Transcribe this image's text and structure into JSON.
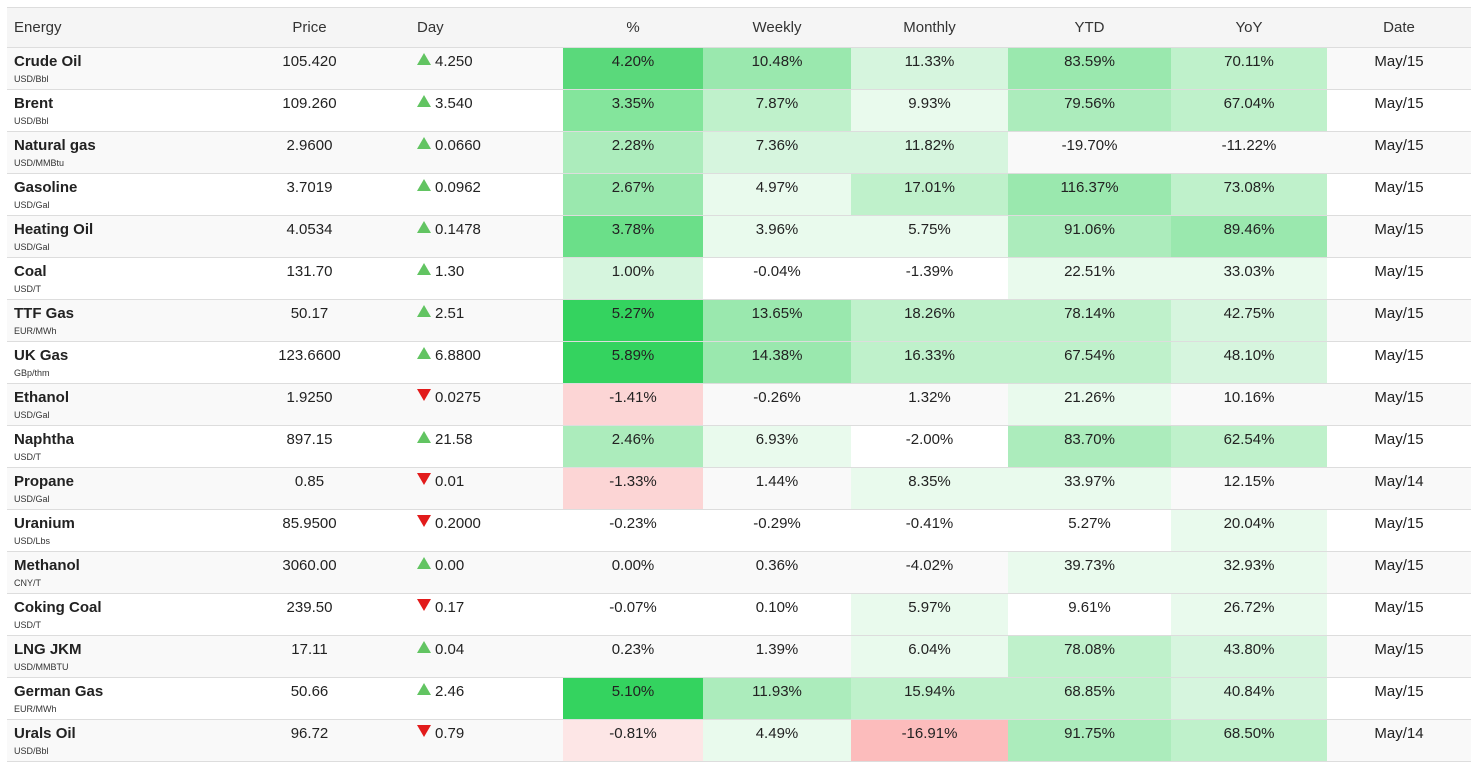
{
  "headers": {
    "name": "Energy",
    "price": "Price",
    "day": "Day",
    "pct": "%",
    "weekly": "Weekly",
    "monthly": "Monthly",
    "ytd": "YTD",
    "yoy": "YoY",
    "date": "Date"
  },
  "rows": [
    {
      "name": "Crude Oil",
      "unit": "USD/Bbl",
      "price": "105.420",
      "day_dir": "up",
      "day": "4.250",
      "pct": {
        "text": "4.20%",
        "bg": "#5ad97b"
      },
      "weekly": {
        "text": "10.48%",
        "bg": "#9ae8ae"
      },
      "monthly": {
        "text": "11.33%",
        "bg": "#d6f5de"
      },
      "ytd": {
        "text": "83.59%",
        "bg": "#9ae8ae"
      },
      "yoy": {
        "text": "70.11%",
        "bg": "#bff1cb"
      },
      "date": "May/15"
    },
    {
      "name": "Brent",
      "unit": "USD/Bbl",
      "price": "109.260",
      "day_dir": "up",
      "day": "3.540",
      "pct": {
        "text": "3.35%",
        "bg": "#84e59c"
      },
      "weekly": {
        "text": "7.87%",
        "bg": "#bff1cb"
      },
      "monthly": {
        "text": "9.93%",
        "bg": "#e9faed"
      },
      "ytd": {
        "text": "79.56%",
        "bg": "#acecbc"
      },
      "yoy": {
        "text": "67.04%",
        "bg": "#bff1cb"
      },
      "date": "May/15"
    },
    {
      "name": "Natural gas",
      "unit": "USD/MMBtu",
      "price": "2.9600",
      "day_dir": "up",
      "day": "0.0660",
      "pct": {
        "text": "2.28%",
        "bg": "#acecbc"
      },
      "weekly": {
        "text": "7.36%",
        "bg": "#d6f5de"
      },
      "monthly": {
        "text": "11.82%",
        "bg": "#d6f5de"
      },
      "ytd": {
        "text": "-19.70%",
        "bg": ""
      },
      "yoy": {
        "text": "-11.22%",
        "bg": ""
      },
      "date": "May/15"
    },
    {
      "name": "Gasoline",
      "unit": "USD/Gal",
      "price": "3.7019",
      "day_dir": "up",
      "day": "0.0962",
      "pct": {
        "text": "2.67%",
        "bg": "#9ae8ae"
      },
      "weekly": {
        "text": "4.97%",
        "bg": "#e9faed"
      },
      "monthly": {
        "text": "17.01%",
        "bg": "#bff1cb"
      },
      "ytd": {
        "text": "116.37%",
        "bg": "#9ae8ae"
      },
      "yoy": {
        "text": "73.08%",
        "bg": "#bff1cb"
      },
      "date": "May/15"
    },
    {
      "name": "Heating Oil",
      "unit": "USD/Gal",
      "price": "4.0534",
      "day_dir": "up",
      "day": "0.1478",
      "pct": {
        "text": "3.78%",
        "bg": "#6bdf89"
      },
      "weekly": {
        "text": "3.96%",
        "bg": "#e9faed"
      },
      "monthly": {
        "text": "5.75%",
        "bg": "#e9faed"
      },
      "ytd": {
        "text": "91.06%",
        "bg": "#acecbc"
      },
      "yoy": {
        "text": "89.46%",
        "bg": "#9ae8ae"
      },
      "date": "May/15"
    },
    {
      "name": "Coal",
      "unit": "USD/T",
      "price": "131.70",
      "day_dir": "up",
      "day": "1.30",
      "pct": {
        "text": "1.00%",
        "bg": "#d6f5de"
      },
      "weekly": {
        "text": "-0.04%",
        "bg": ""
      },
      "monthly": {
        "text": "-1.39%",
        "bg": ""
      },
      "ytd": {
        "text": "22.51%",
        "bg": "#e9faed"
      },
      "yoy": {
        "text": "33.03%",
        "bg": "#e9faed"
      },
      "date": "May/15"
    },
    {
      "name": "TTF Gas",
      "unit": "EUR/MWh",
      "price": "50.17",
      "day_dir": "up",
      "day": "2.51",
      "pct": {
        "text": "5.27%",
        "bg": "#34d35f"
      },
      "weekly": {
        "text": "13.65%",
        "bg": "#9ae8ae"
      },
      "monthly": {
        "text": "18.26%",
        "bg": "#bff1cb"
      },
      "ytd": {
        "text": "78.14%",
        "bg": "#bff1cb"
      },
      "yoy": {
        "text": "42.75%",
        "bg": "#d6f5de"
      },
      "date": "May/15"
    },
    {
      "name": "UK Gas",
      "unit": "GBp/thm",
      "price": "123.6600",
      "day_dir": "up",
      "day": "6.8800",
      "pct": {
        "text": "5.89%",
        "bg": "#34d35f"
      },
      "weekly": {
        "text": "14.38%",
        "bg": "#9ae8ae"
      },
      "monthly": {
        "text": "16.33%",
        "bg": "#bff1cb"
      },
      "ytd": {
        "text": "67.54%",
        "bg": "#bff1cb"
      },
      "yoy": {
        "text": "48.10%",
        "bg": "#d6f5de"
      },
      "date": "May/15"
    },
    {
      "name": "Ethanol",
      "unit": "USD/Gal",
      "price": "1.9250",
      "day_dir": "down",
      "day": "0.0275",
      "pct": {
        "text": "-1.41%",
        "bg": "#fcd5d5"
      },
      "weekly": {
        "text": "-0.26%",
        "bg": ""
      },
      "monthly": {
        "text": "1.32%",
        "bg": ""
      },
      "ytd": {
        "text": "21.26%",
        "bg": "#e9faed"
      },
      "yoy": {
        "text": "10.16%",
        "bg": ""
      },
      "date": "May/15"
    },
    {
      "name": "Naphtha",
      "unit": "USD/T",
      "price": "897.15",
      "day_dir": "up",
      "day": "21.58",
      "pct": {
        "text": "2.46%",
        "bg": "#acecbc"
      },
      "weekly": {
        "text": "6.93%",
        "bg": "#e9faed"
      },
      "monthly": {
        "text": "-2.00%",
        "bg": ""
      },
      "ytd": {
        "text": "83.70%",
        "bg": "#acecbc"
      },
      "yoy": {
        "text": "62.54%",
        "bg": "#bff1cb"
      },
      "date": "May/15"
    },
    {
      "name": "Propane",
      "unit": "USD/Gal",
      "price": "0.85",
      "day_dir": "down",
      "day": "0.01",
      "pct": {
        "text": "-1.33%",
        "bg": "#fcd5d5"
      },
      "weekly": {
        "text": "1.44%",
        "bg": ""
      },
      "monthly": {
        "text": "8.35%",
        "bg": "#e9faed"
      },
      "ytd": {
        "text": "33.97%",
        "bg": "#e9faed"
      },
      "yoy": {
        "text": "12.15%",
        "bg": ""
      },
      "date": "May/14"
    },
    {
      "name": "Uranium",
      "unit": "USD/Lbs",
      "price": "85.9500",
      "day_dir": "down",
      "day": "0.2000",
      "pct": {
        "text": "-0.23%",
        "bg": "#ffffff"
      },
      "weekly": {
        "text": "-0.29%",
        "bg": "#ffffff"
      },
      "monthly": {
        "text": "-0.41%",
        "bg": "#ffffff"
      },
      "ytd": {
        "text": "5.27%",
        "bg": "#ffffff"
      },
      "yoy": {
        "text": "20.04%",
        "bg": "#e9faed"
      },
      "date": "May/15"
    },
    {
      "name": "Methanol",
      "unit": "CNY/T",
      "price": "3060.00",
      "day_dir": "up",
      "day": "0.00",
      "pct": {
        "text": "0.00%",
        "bg": ""
      },
      "weekly": {
        "text": "0.36%",
        "bg": ""
      },
      "monthly": {
        "text": "-4.02%",
        "bg": ""
      },
      "ytd": {
        "text": "39.73%",
        "bg": "#e9faed"
      },
      "yoy": {
        "text": "32.93%",
        "bg": "#e9faed"
      },
      "date": "May/15"
    },
    {
      "name": "Coking Coal",
      "unit": "USD/T",
      "price": "239.50",
      "day_dir": "down",
      "day": "0.17",
      "pct": {
        "text": "-0.07%",
        "bg": "#ffffff"
      },
      "weekly": {
        "text": "0.10%",
        "bg": "#ffffff"
      },
      "monthly": {
        "text": "5.97%",
        "bg": "#e9faed"
      },
      "ytd": {
        "text": "9.61%",
        "bg": "#ffffff"
      },
      "yoy": {
        "text": "26.72%",
        "bg": "#e9faed"
      },
      "date": "May/15"
    },
    {
      "name": "LNG JKM",
      "unit": "USD/MMBTU",
      "price": "17.11",
      "day_dir": "up",
      "day": "0.04",
      "pct": {
        "text": "0.23%",
        "bg": ""
      },
      "weekly": {
        "text": "1.39%",
        "bg": ""
      },
      "monthly": {
        "text": "6.04%",
        "bg": "#e9faed"
      },
      "ytd": {
        "text": "78.08%",
        "bg": "#bff1cb"
      },
      "yoy": {
        "text": "43.80%",
        "bg": "#d6f5de"
      },
      "date": "May/15"
    },
    {
      "name": "German Gas",
      "unit": "EUR/MWh",
      "price": "50.66",
      "day_dir": "up",
      "day": "2.46",
      "pct": {
        "text": "5.10%",
        "bg": "#34d35f"
      },
      "weekly": {
        "text": "11.93%",
        "bg": "#acecbc"
      },
      "monthly": {
        "text": "15.94%",
        "bg": "#bff1cb"
      },
      "ytd": {
        "text": "68.85%",
        "bg": "#bff1cb"
      },
      "yoy": {
        "text": "40.84%",
        "bg": "#d6f5de"
      },
      "date": "May/15"
    },
    {
      "name": "Urals Oil",
      "unit": "USD/Bbl",
      "price": "96.72",
      "day_dir": "down",
      "day": "0.79",
      "pct": {
        "text": "-0.81%",
        "bg": "#fde6e6"
      },
      "weekly": {
        "text": "4.49%",
        "bg": "#e9faed"
      },
      "monthly": {
        "text": "-16.91%",
        "bg": "#fcbcbc"
      },
      "ytd": {
        "text": "91.75%",
        "bg": "#acecbc"
      },
      "yoy": {
        "text": "68.50%",
        "bg": "#bff1cb"
      },
      "date": "May/14"
    }
  ],
  "icons": {
    "up": "triangle-up-icon",
    "down": "triangle-down-icon"
  },
  "colors": {
    "up_arrow": "#62c462",
    "down_arrow": "#e21b1b"
  }
}
